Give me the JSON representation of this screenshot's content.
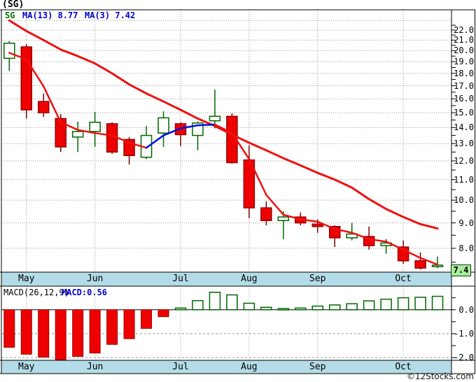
{
  "header": {
    "title": "(SG)"
  },
  "watermark": "©12Stocks.com",
  "colors": {
    "up_outline": "#006600",
    "up_wick": "#006600",
    "up_fill": "#ffffff",
    "down_fill": "#ee0000",
    "down_outline": "#990000",
    "down_wick": "#7a0000",
    "ma13_line": "#ee1111",
    "ma3_rising": "#0011dd",
    "ma3_falling": "#ee1111",
    "legend_symbol_text": "#007700",
    "legend_text": "#0000cc",
    "month_band": "#b3dce8",
    "grid": "#999999",
    "axis_text": "#000000",
    "price_tag_bg": "#a8ec9e",
    "frame": "#000000"
  },
  "chart_data": [
    {
      "type": "candlestick",
      "symbol": "SG",
      "interval": "weekly",
      "scale": "log",
      "legend": {
        "symbol": "SG",
        "ma13_label": "MA(13) 8.77",
        "ma3_label": "MA(3) 7.42"
      },
      "price_tag": "7.4",
      "y_ticks": [
        22,
        21,
        20,
        19,
        18,
        17,
        16,
        15,
        14,
        13,
        12,
        11,
        10,
        9,
        8
      ],
      "ylim": [
        7.2,
        23.2
      ],
      "months": [
        {
          "label": "May",
          "index": 1
        },
        {
          "label": "Jun",
          "index": 5
        },
        {
          "label": "Jul",
          "index": 10
        },
        {
          "label": "Aug",
          "index": 14
        },
        {
          "label": "Sep",
          "index": 18
        },
        {
          "label": "Oct",
          "index": 23
        }
      ],
      "candles_ohlc": [
        [
          19.3,
          20.9,
          18.2,
          20.7
        ],
        [
          20.35,
          20.6,
          14.6,
          15.2
        ],
        [
          15.8,
          16.4,
          14.7,
          15.0
        ],
        [
          14.6,
          14.9,
          12.5,
          12.8
        ],
        [
          13.4,
          14.4,
          12.5,
          13.75
        ],
        [
          13.75,
          15.05,
          12.8,
          14.35
        ],
        [
          14.25,
          14.35,
          12.4,
          12.5
        ],
        [
          13.25,
          13.4,
          11.8,
          12.3
        ],
        [
          12.2,
          14.1,
          12.1,
          13.5
        ],
        [
          13.65,
          15.1,
          12.8,
          14.65
        ],
        [
          14.25,
          14.35,
          12.85,
          13.55
        ],
        [
          13.5,
          14.4,
          12.6,
          14.3
        ],
        [
          14.45,
          16.7,
          13.95,
          14.75
        ],
        [
          14.75,
          14.95,
          11.85,
          11.9
        ],
        [
          12.05,
          12.9,
          9.2,
          9.65
        ],
        [
          9.65,
          9.95,
          8.9,
          9.1
        ],
        [
          9.1,
          9.5,
          8.35,
          9.25
        ],
        [
          9.25,
          9.45,
          8.9,
          9.0
        ],
        [
          8.95,
          9.15,
          8.6,
          8.85
        ],
        [
          8.85,
          8.9,
          8.05,
          8.4
        ],
        [
          8.4,
          9.0,
          8.3,
          8.55
        ],
        [
          8.45,
          8.85,
          7.95,
          8.1
        ],
        [
          8.1,
          8.35,
          7.8,
          8.2
        ],
        [
          8.05,
          8.3,
          7.45,
          7.55
        ],
        [
          7.55,
          7.85,
          7.25,
          7.3
        ],
        [
          7.35,
          7.7,
          7.3,
          7.4
        ]
      ],
      "ma13": [
        23.0,
        21.9,
        21.0,
        20.1,
        19.5,
        18.85,
        18.0,
        17.1,
        16.4,
        15.8,
        15.2,
        14.6,
        14.1,
        13.55,
        13.05,
        12.6,
        12.15,
        11.75,
        11.35,
        11.0,
        10.6,
        10.05,
        9.6,
        9.25,
        8.95,
        8.77
      ],
      "ma3": [
        19.8,
        19.2,
        16.95,
        14.35,
        13.85,
        13.65,
        13.5,
        13.05,
        12.75,
        13.5,
        13.95,
        14.15,
        14.2,
        13.65,
        12.1,
        10.25,
        9.35,
        9.15,
        9.05,
        8.75,
        8.6,
        8.35,
        8.25,
        7.95,
        7.65,
        7.42
      ]
    },
    {
      "type": "bar",
      "title": "MACD(26,12,9)",
      "value_label": "MACD:0.56",
      "y_ticks": [
        0.0,
        -1.0,
        -2.0
      ],
      "ylim": [
        -2.3,
        0.9
      ],
      "values": [
        -1.57,
        -1.86,
        -1.98,
        -2.12,
        -1.95,
        -1.81,
        -1.45,
        -1.21,
        -0.78,
        -0.29,
        0.07,
        0.38,
        0.73,
        0.62,
        0.27,
        0.1,
        0.05,
        0.07,
        0.15,
        0.2,
        0.25,
        0.37,
        0.44,
        0.5,
        0.52,
        0.56
      ]
    }
  ]
}
